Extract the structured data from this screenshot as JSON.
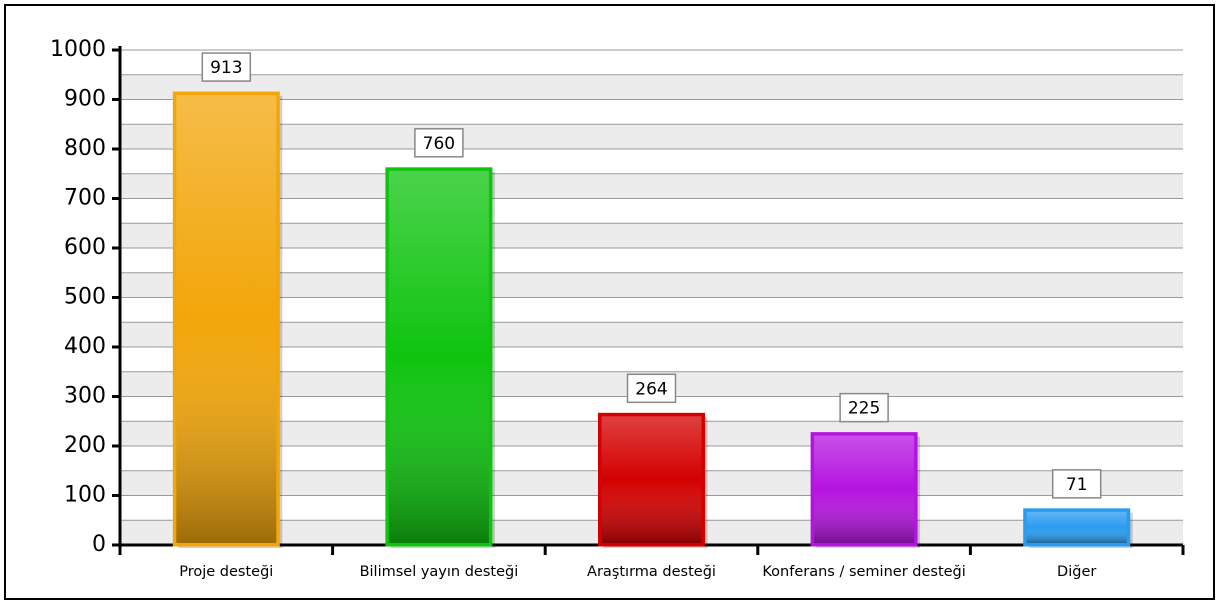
{
  "chart_data": {
    "type": "bar",
    "categories": [
      "Proje desteği",
      "Bilimsel yayın desteği",
      "Araştırma desteği",
      "Konferans / seminer desteği",
      "Diğer"
    ],
    "values": [
      913,
      760,
      264,
      225,
      71
    ],
    "colors": [
      "#f2a60a",
      "#0fc40f",
      "#d40000",
      "#b514e0",
      "#2a9cf0"
    ],
    "ylim": [
      0,
      1000
    ],
    "yticks": [
      0,
      100,
      200,
      300,
      400,
      500,
      600,
      700,
      800,
      900,
      1000
    ],
    "grid": true
  }
}
